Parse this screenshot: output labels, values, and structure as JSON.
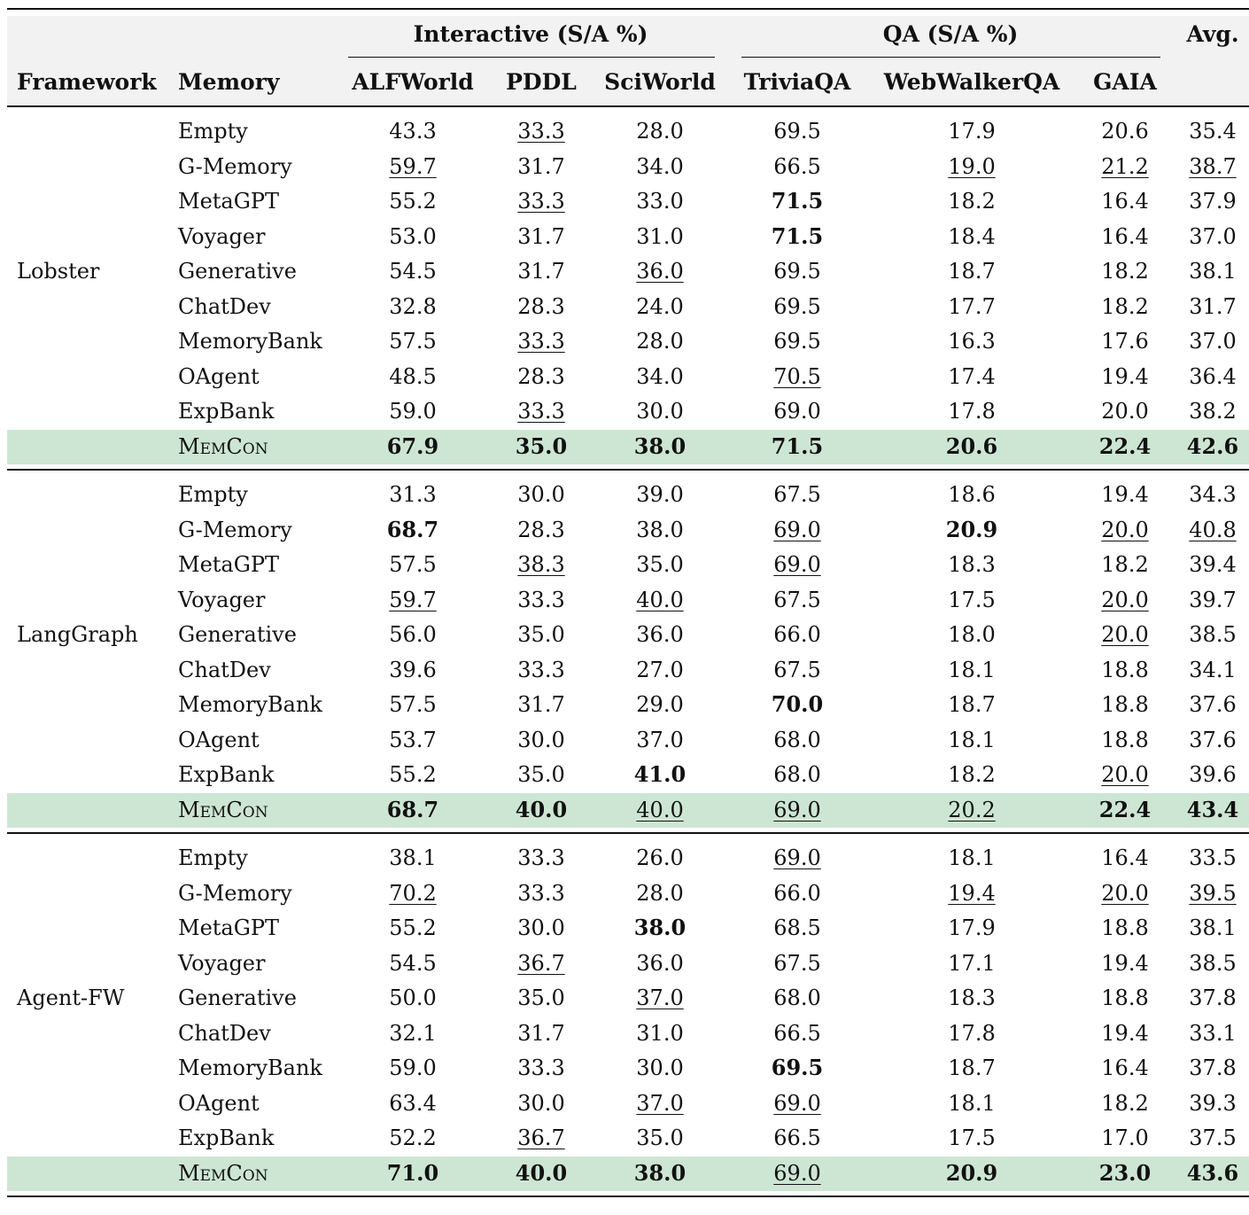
{
  "header": {
    "group_interactive": "Interactive (S/A %)",
    "group_qa": "QA (S/A %)",
    "avg": "Avg.",
    "framework": "Framework",
    "memory": "Memory",
    "columns": [
      "ALFWorld",
      "PDDL",
      "SciWorld",
      "TriviaQA",
      "WebWalkerQA",
      "GAIA"
    ]
  },
  "sections": [
    {
      "framework": "Lobster",
      "rows": [
        {
          "memory": "Empty",
          "values": [
            "43.3",
            "33.3",
            "28.0",
            "69.5",
            "17.9",
            "20.6",
            "35.4"
          ],
          "bold": [],
          "underline": [
            1
          ]
        },
        {
          "memory": "G-Memory",
          "values": [
            "59.7",
            "31.7",
            "34.0",
            "66.5",
            "19.0",
            "21.2",
            "38.7"
          ],
          "bold": [],
          "underline": [
            0,
            4,
            5,
            6
          ]
        },
        {
          "memory": "MetaGPT",
          "values": [
            "55.2",
            "33.3",
            "33.0",
            "71.5",
            "18.2",
            "16.4",
            "37.9"
          ],
          "bold": [
            3
          ],
          "underline": [
            1
          ]
        },
        {
          "memory": "Voyager",
          "values": [
            "53.0",
            "31.7",
            "31.0",
            "71.5",
            "18.4",
            "16.4",
            "37.0"
          ],
          "bold": [
            3
          ],
          "underline": []
        },
        {
          "memory": "Generative",
          "values": [
            "54.5",
            "31.7",
            "36.0",
            "69.5",
            "18.7",
            "18.2",
            "38.1"
          ],
          "bold": [],
          "underline": [
            2
          ]
        },
        {
          "memory": "ChatDev",
          "values": [
            "32.8",
            "28.3",
            "24.0",
            "69.5",
            "17.7",
            "18.2",
            "31.7"
          ],
          "bold": [],
          "underline": []
        },
        {
          "memory": "MemoryBank",
          "values": [
            "57.5",
            "33.3",
            "28.0",
            "69.5",
            "16.3",
            "17.6",
            "37.0"
          ],
          "bold": [],
          "underline": [
            1
          ]
        },
        {
          "memory": "OAgent",
          "values": [
            "48.5",
            "28.3",
            "34.0",
            "70.5",
            "17.4",
            "19.4",
            "36.4"
          ],
          "bold": [],
          "underline": [
            3
          ]
        },
        {
          "memory": "ExpBank",
          "values": [
            "59.0",
            "33.3",
            "30.0",
            "69.0",
            "17.8",
            "20.0",
            "38.2"
          ],
          "bold": [],
          "underline": [
            1
          ]
        },
        {
          "memory": "MemCon",
          "values": [
            "67.9",
            "35.0",
            "38.0",
            "71.5",
            "20.6",
            "22.4",
            "42.6"
          ],
          "bold": [
            0,
            1,
            2,
            3,
            4,
            5,
            6
          ],
          "underline": [],
          "highlight": true
        }
      ]
    },
    {
      "framework": "LangGraph",
      "rows": [
        {
          "memory": "Empty",
          "values": [
            "31.3",
            "30.0",
            "39.0",
            "67.5",
            "18.6",
            "19.4",
            "34.3"
          ],
          "bold": [],
          "underline": []
        },
        {
          "memory": "G-Memory",
          "values": [
            "68.7",
            "28.3",
            "38.0",
            "69.0",
            "20.9",
            "20.0",
            "40.8"
          ],
          "bold": [
            0,
            4
          ],
          "underline": [
            3,
            5,
            6
          ]
        },
        {
          "memory": "MetaGPT",
          "values": [
            "57.5",
            "38.3",
            "35.0",
            "69.0",
            "18.3",
            "18.2",
            "39.4"
          ],
          "bold": [],
          "underline": [
            1,
            3
          ]
        },
        {
          "memory": "Voyager",
          "values": [
            "59.7",
            "33.3",
            "40.0",
            "67.5",
            "17.5",
            "20.0",
            "39.7"
          ],
          "bold": [],
          "underline": [
            0,
            2,
            5
          ]
        },
        {
          "memory": "Generative",
          "values": [
            "56.0",
            "35.0",
            "36.0",
            "66.0",
            "18.0",
            "20.0",
            "38.5"
          ],
          "bold": [],
          "underline": [
            5
          ]
        },
        {
          "memory": "ChatDev",
          "values": [
            "39.6",
            "33.3",
            "27.0",
            "67.5",
            "18.1",
            "18.8",
            "34.1"
          ],
          "bold": [],
          "underline": []
        },
        {
          "memory": "MemoryBank",
          "values": [
            "57.5",
            "31.7",
            "29.0",
            "70.0",
            "18.7",
            "18.8",
            "37.6"
          ],
          "bold": [
            3
          ],
          "underline": []
        },
        {
          "memory": "OAgent",
          "values": [
            "53.7",
            "30.0",
            "37.0",
            "68.0",
            "18.1",
            "18.8",
            "37.6"
          ],
          "bold": [],
          "underline": []
        },
        {
          "memory": "ExpBank",
          "values": [
            "55.2",
            "35.0",
            "41.0",
            "68.0",
            "18.2",
            "20.0",
            "39.6"
          ],
          "bold": [
            2
          ],
          "underline": [
            5
          ]
        },
        {
          "memory": "MemCon",
          "values": [
            "68.7",
            "40.0",
            "40.0",
            "69.0",
            "20.2",
            "22.4",
            "43.4"
          ],
          "bold": [
            0,
            1,
            5,
            6
          ],
          "underline": [
            2,
            3,
            4
          ],
          "highlight": true
        }
      ]
    },
    {
      "framework": "Agent-FW",
      "rows": [
        {
          "memory": "Empty",
          "values": [
            "38.1",
            "33.3",
            "26.0",
            "69.0",
            "18.1",
            "16.4",
            "33.5"
          ],
          "bold": [],
          "underline": [
            3
          ]
        },
        {
          "memory": "G-Memory",
          "values": [
            "70.2",
            "33.3",
            "28.0",
            "66.0",
            "19.4",
            "20.0",
            "39.5"
          ],
          "bold": [],
          "underline": [
            0,
            4,
            5,
            6
          ]
        },
        {
          "memory": "MetaGPT",
          "values": [
            "55.2",
            "30.0",
            "38.0",
            "68.5",
            "17.9",
            "18.8",
            "38.1"
          ],
          "bold": [
            2
          ],
          "underline": []
        },
        {
          "memory": "Voyager",
          "values": [
            "54.5",
            "36.7",
            "36.0",
            "67.5",
            "17.1",
            "19.4",
            "38.5"
          ],
          "bold": [],
          "underline": [
            1
          ]
        },
        {
          "memory": "Generative",
          "values": [
            "50.0",
            "35.0",
            "37.0",
            "68.0",
            "18.3",
            "18.8",
            "37.8"
          ],
          "bold": [],
          "underline": [
            2
          ]
        },
        {
          "memory": "ChatDev",
          "values": [
            "32.1",
            "31.7",
            "31.0",
            "66.5",
            "17.8",
            "19.4",
            "33.1"
          ],
          "bold": [],
          "underline": []
        },
        {
          "memory": "MemoryBank",
          "values": [
            "59.0",
            "33.3",
            "30.0",
            "69.5",
            "18.7",
            "16.4",
            "37.8"
          ],
          "bold": [
            3
          ],
          "underline": []
        },
        {
          "memory": "OAgent",
          "values": [
            "63.4",
            "30.0",
            "37.0",
            "69.0",
            "18.1",
            "18.2",
            "39.3"
          ],
          "bold": [],
          "underline": [
            2,
            3
          ]
        },
        {
          "memory": "ExpBank",
          "values": [
            "52.2",
            "36.7",
            "35.0",
            "66.5",
            "17.5",
            "17.0",
            "37.5"
          ],
          "bold": [],
          "underline": [
            1
          ]
        },
        {
          "memory": "MemCon",
          "values": [
            "71.0",
            "40.0",
            "38.0",
            "69.0",
            "20.9",
            "23.0",
            "43.6"
          ],
          "bold": [
            0,
            1,
            2,
            4,
            5,
            6
          ],
          "underline": [
            3
          ],
          "highlight": true
        }
      ]
    }
  ]
}
